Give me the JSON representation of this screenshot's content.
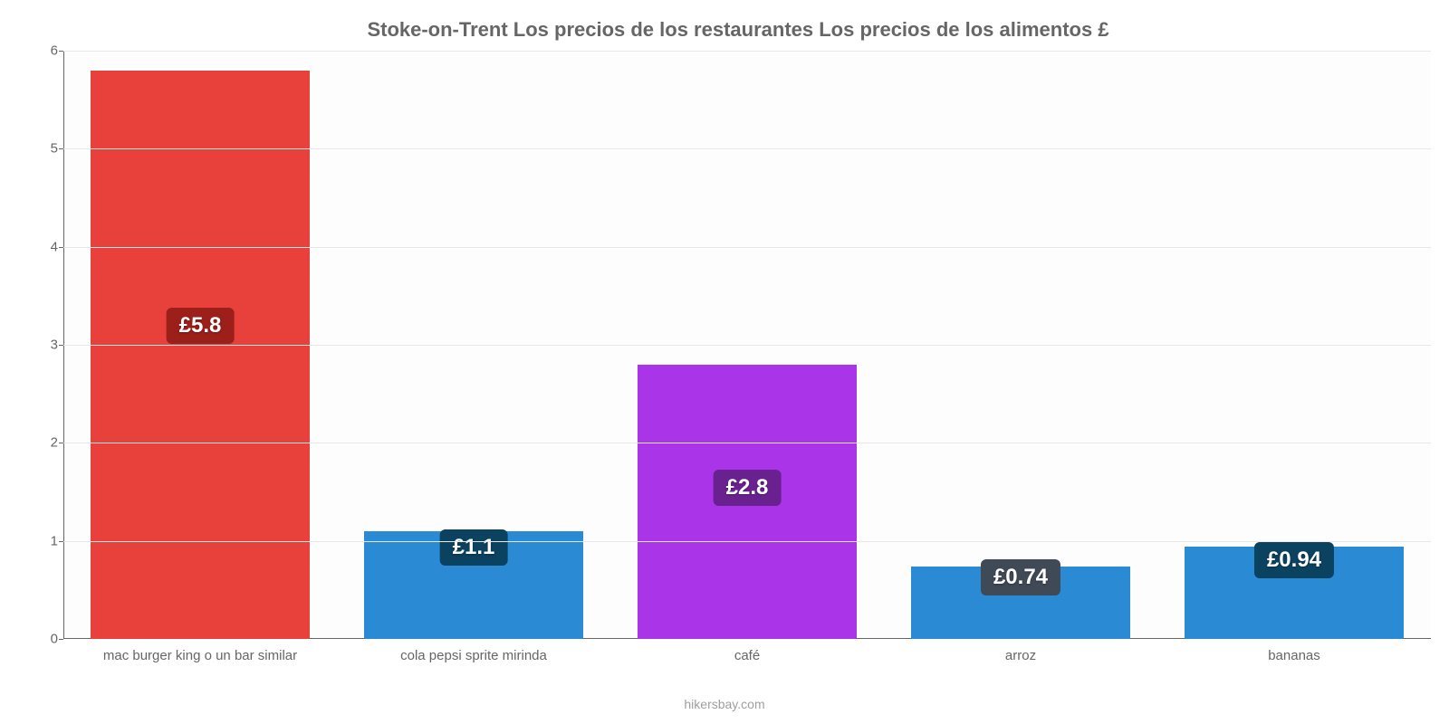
{
  "chart": {
    "type": "bar",
    "title": "Stoke-on-Trent Los precios de los restaurantes Los precios de los alimentos £",
    "title_color": "#666666",
    "title_fontsize": 22,
    "background_color": "#fdfdfd",
    "grid_color": "#e8e8e8",
    "axis_color": "#666666",
    "tick_label_color": "#666666",
    "tick_fontsize": 15,
    "y": {
      "min": 0,
      "max": 6,
      "ticks": [
        0,
        1,
        2,
        3,
        4,
        5,
        6
      ]
    },
    "categories": [
      "mac burger king o un bar similar",
      "cola pepsi sprite mirinda",
      "café",
      "arroz",
      "bananas"
    ],
    "values": [
      5.8,
      1.1,
      2.8,
      0.74,
      0.94
    ],
    "value_labels": [
      "£5.8",
      "£1.1",
      "£2.8",
      "£0.74",
      "£0.94"
    ],
    "bar_colors": [
      "#e8413c",
      "#2a8bd4",
      "#aa34e8",
      "#2a8bd4",
      "#2a8bd4"
    ],
    "badge_colors": [
      "#9c1f1a",
      "#0b4260",
      "#6a2190",
      "#404956",
      "#0b4260"
    ],
    "bar_width_pct": 16,
    "value_label_fontsize": 24,
    "value_label_text_color": "#ffffff"
  },
  "credit": "hikersbay.com"
}
